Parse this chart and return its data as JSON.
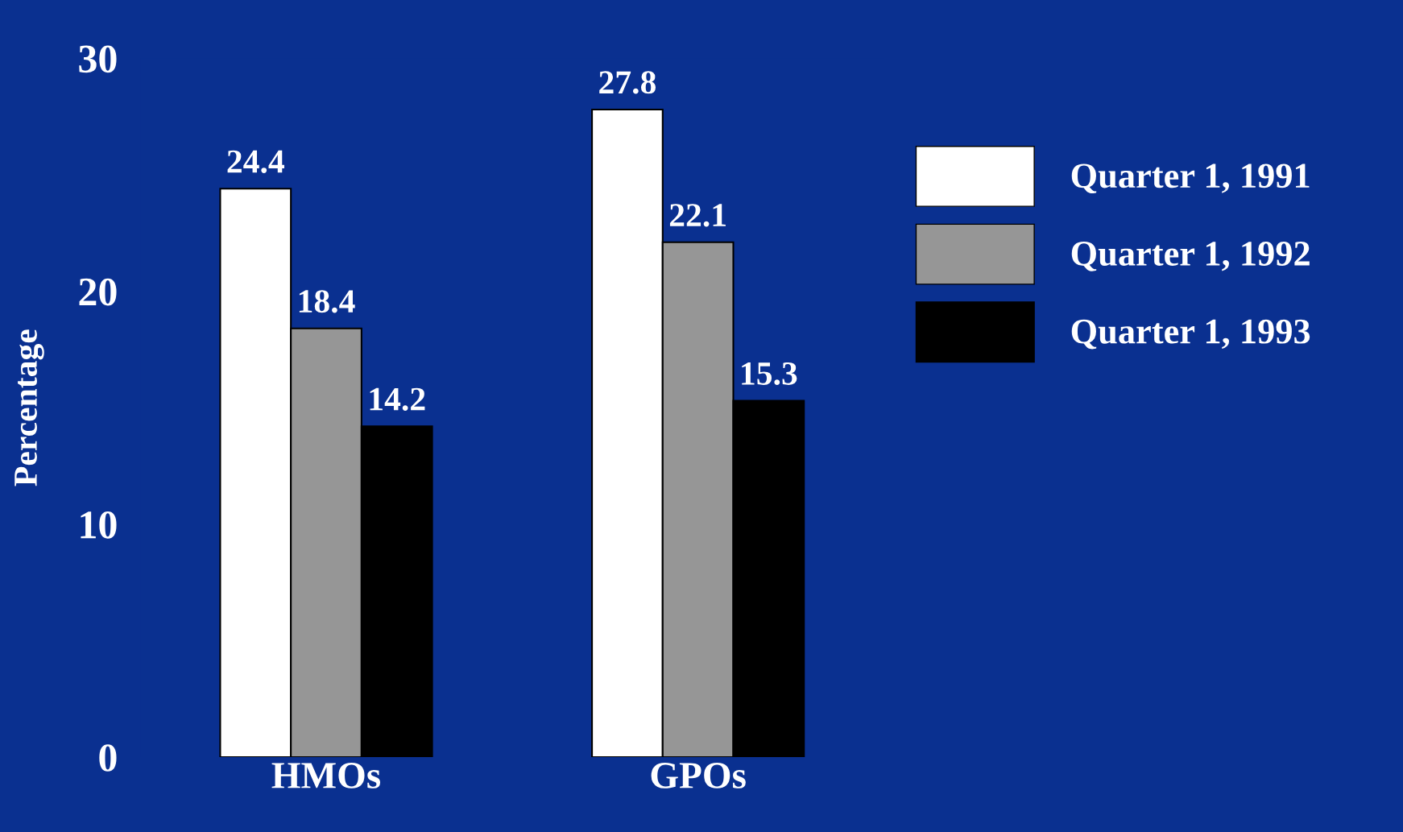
{
  "chart_data": {
    "type": "bar",
    "ylabel": "Percentage",
    "categories": [
      "HMOs",
      "GPOs"
    ],
    "series": [
      {
        "name": "Quarter 1, 1991",
        "color": "#ffffff",
        "values": [
          24.4,
          27.8
        ]
      },
      {
        "name": "Quarter 1, 1992",
        "color": "#969696",
        "values": [
          18.4,
          22.1
        ]
      },
      {
        "name": "Quarter 1, 1993",
        "color": "#000000",
        "values": [
          14.2,
          15.3
        ]
      }
    ],
    "ylim": [
      0,
      30
    ],
    "yticks": [
      0,
      10,
      20,
      30
    ],
    "data_labels": true,
    "legend": "right",
    "grid": false
  }
}
